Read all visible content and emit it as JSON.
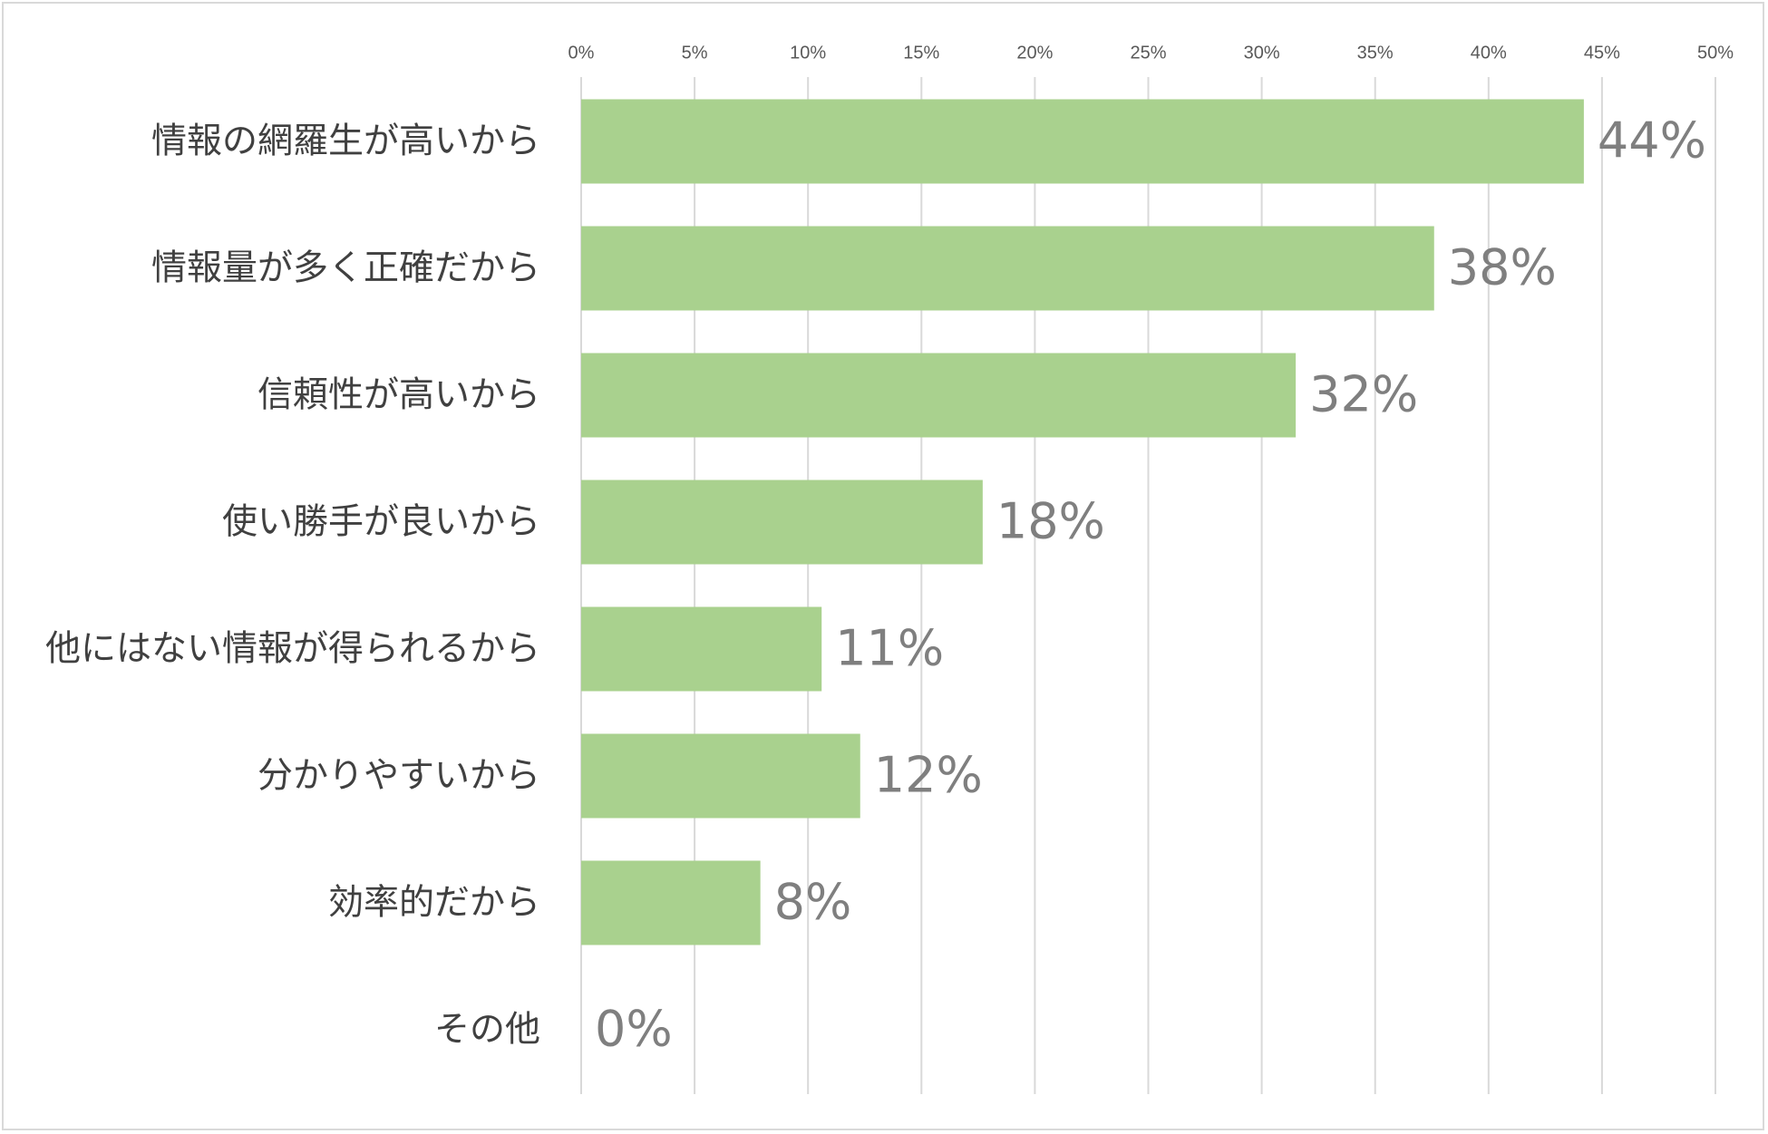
{
  "chart_data": {
    "type": "bar",
    "orientation": "horizontal",
    "categories": [
      "情報の網羅生が高いから",
      "情報量が多く正確だから",
      "信頼性が高いから",
      "使い勝手が良いから",
      "他にはない情報が得られるから",
      "分かりやすいから",
      "効率的だから",
      "その他"
    ],
    "values": [
      44.2,
      37.6,
      31.5,
      17.7,
      10.6,
      12.3,
      7.9,
      0
    ],
    "value_labels": [
      "44%",
      "38%",
      "32%",
      "18%",
      "11%",
      "12%",
      "8%",
      "0%"
    ],
    "x_ticks": [
      "0%",
      "5%",
      "10%",
      "15%",
      "20%",
      "25%",
      "30%",
      "35%",
      "40%",
      "45%",
      "50%"
    ],
    "xlim": [
      0,
      50
    ],
    "x_axis_position": "top",
    "grid": true,
    "bar_color": "#a9d18e",
    "grid_color": "#d9d9d9"
  }
}
